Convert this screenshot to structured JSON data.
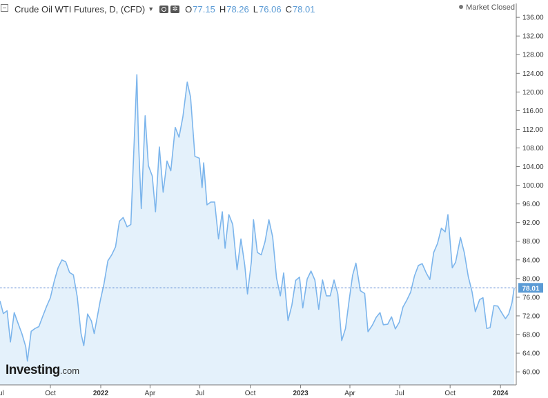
{
  "header": {
    "title": "Crude Oil WTI Futures, D, (CFD)",
    "ohlc": [
      {
        "label": "O",
        "value": "77.15"
      },
      {
        "label": "H",
        "value": "78.26"
      },
      {
        "label": "L",
        "value": "76.06"
      },
      {
        "label": "C",
        "value": "78.01"
      }
    ],
    "market_status": "Market Closed"
  },
  "logo": {
    "brand": "Investing",
    "suffix": ".com"
  },
  "colors": {
    "line": "#7cb5ec",
    "area": "#e4f1fb",
    "axis_label_bg": "#5b9bd5",
    "ohlc_value": "#5b9bd5"
  },
  "chart_data": {
    "type": "area",
    "last_price": 78.01,
    "last_price_label": "78.01",
    "y_ticks": [
      "136.00",
      "132.00",
      "128.00",
      "124.00",
      "120.00",
      "116.00",
      "112.00",
      "108.00",
      "104.00",
      "100.00",
      "96.00",
      "92.00",
      "88.00",
      "84.00",
      "80.00",
      "76.00",
      "72.00",
      "68.00",
      "64.00",
      "60.00"
    ],
    "ylim": [
      57.5,
      137.5
    ],
    "x_ticks": [
      {
        "label": "Oct",
        "bold": false
      },
      {
        "label": "2022",
        "bold": true
      },
      {
        "label": "Apr",
        "bold": false
      },
      {
        "label": "Jul",
        "bold": false
      },
      {
        "label": "Oct",
        "bold": false
      },
      {
        "label": "2023",
        "bold": true
      },
      {
        "label": "Apr",
        "bold": false
      },
      {
        "label": "Jul",
        "bold": false
      },
      {
        "label": "Oct",
        "bold": false
      },
      {
        "label": "2024",
        "bold": true
      }
    ],
    "x_tick_dates": [
      "2021-10-01",
      "2022-01-01",
      "2022-04-01",
      "2022-07-01",
      "2022-10-01",
      "2023-01-01",
      "2023-04-01",
      "2023-07-01",
      "2023-10-01",
      "2024-01-01"
    ],
    "x_range": [
      "2021-07-01",
      "2024-01-26"
    ],
    "x_left_cutoff_label": "Jul",
    "series": [
      {
        "points": [
          [
            "2021-07-01",
            75.2
          ],
          [
            "2021-07-07",
            72.5
          ],
          [
            "2021-07-14",
            73.1
          ],
          [
            "2021-07-20",
            66.4
          ],
          [
            "2021-07-27",
            72.7
          ],
          [
            "2021-08-03",
            70.4
          ],
          [
            "2021-08-10",
            68.2
          ],
          [
            "2021-08-17",
            65.4
          ],
          [
            "2021-08-20",
            62.3
          ],
          [
            "2021-08-27",
            68.7
          ],
          [
            "2021-09-03",
            69.3
          ],
          [
            "2021-09-10",
            69.7
          ],
          [
            "2021-09-17",
            71.9
          ],
          [
            "2021-09-24",
            74.0
          ],
          [
            "2021-10-01",
            75.9
          ],
          [
            "2021-10-08",
            79.4
          ],
          [
            "2021-10-15",
            82.3
          ],
          [
            "2021-10-22",
            84.0
          ],
          [
            "2021-10-29",
            83.6
          ],
          [
            "2021-11-05",
            81.3
          ],
          [
            "2021-11-12",
            80.8
          ],
          [
            "2021-11-19",
            76.1
          ],
          [
            "2021-11-26",
            68.2
          ],
          [
            "2021-12-01",
            65.6
          ],
          [
            "2021-12-08",
            72.4
          ],
          [
            "2021-12-15",
            70.9
          ],
          [
            "2021-12-20",
            68.2
          ],
          [
            "2021-12-31",
            75.2
          ],
          [
            "2022-01-07",
            78.9
          ],
          [
            "2022-01-14",
            83.8
          ],
          [
            "2022-01-21",
            85.1
          ],
          [
            "2022-01-28",
            86.8
          ],
          [
            "2022-02-04",
            92.3
          ],
          [
            "2022-02-11",
            93.1
          ],
          [
            "2022-02-18",
            91.1
          ],
          [
            "2022-02-25",
            91.6
          ],
          [
            "2022-03-01",
            103.4
          ],
          [
            "2022-03-08",
            123.7
          ],
          [
            "2022-03-11",
            109.3
          ],
          [
            "2022-03-16",
            95.0
          ],
          [
            "2022-03-23",
            114.9
          ],
          [
            "2022-03-29",
            104.2
          ],
          [
            "2022-04-05",
            102.0
          ],
          [
            "2022-04-11",
            94.3
          ],
          [
            "2022-04-18",
            108.2
          ],
          [
            "2022-04-25",
            98.5
          ],
          [
            "2022-05-02",
            105.2
          ],
          [
            "2022-05-09",
            103.1
          ],
          [
            "2022-05-17",
            112.4
          ],
          [
            "2022-05-24",
            110.3
          ],
          [
            "2022-05-31",
            114.7
          ],
          [
            "2022-06-08",
            122.1
          ],
          [
            "2022-06-14",
            118.9
          ],
          [
            "2022-06-22",
            106.2
          ],
          [
            "2022-06-30",
            105.8
          ],
          [
            "2022-07-05",
            99.5
          ],
          [
            "2022-07-08",
            104.8
          ],
          [
            "2022-07-14",
            95.8
          ],
          [
            "2022-07-21",
            96.4
          ],
          [
            "2022-07-28",
            96.4
          ],
          [
            "2022-08-04",
            88.5
          ],
          [
            "2022-08-11",
            94.3
          ],
          [
            "2022-08-16",
            86.5
          ],
          [
            "2022-08-23",
            93.7
          ],
          [
            "2022-08-30",
            91.6
          ],
          [
            "2022-09-07",
            81.9
          ],
          [
            "2022-09-14",
            88.5
          ],
          [
            "2022-09-21",
            82.9
          ],
          [
            "2022-09-26",
            76.7
          ],
          [
            "2022-10-03",
            83.6
          ],
          [
            "2022-10-07",
            92.6
          ],
          [
            "2022-10-14",
            85.6
          ],
          [
            "2022-10-21",
            85.1
          ],
          [
            "2022-10-28",
            87.9
          ],
          [
            "2022-11-04",
            92.6
          ],
          [
            "2022-11-11",
            88.9
          ],
          [
            "2022-11-18",
            80.1
          ],
          [
            "2022-11-25",
            76.3
          ],
          [
            "2022-12-01",
            81.2
          ],
          [
            "2022-12-09",
            71.0
          ],
          [
            "2022-12-16",
            74.3
          ],
          [
            "2022-12-23",
            79.6
          ],
          [
            "2022-12-30",
            80.3
          ],
          [
            "2023-01-05",
            73.7
          ],
          [
            "2023-01-13",
            79.9
          ],
          [
            "2023-01-20",
            81.6
          ],
          [
            "2023-01-27",
            79.7
          ],
          [
            "2023-02-03",
            73.4
          ],
          [
            "2023-02-10",
            79.7
          ],
          [
            "2023-02-17",
            76.3
          ],
          [
            "2023-02-24",
            76.3
          ],
          [
            "2023-03-03",
            79.7
          ],
          [
            "2023-03-10",
            76.7
          ],
          [
            "2023-03-17",
            66.7
          ],
          [
            "2023-03-24",
            69.3
          ],
          [
            "2023-03-31",
            75.7
          ],
          [
            "2023-04-06",
            80.7
          ],
          [
            "2023-04-12",
            83.3
          ],
          [
            "2023-04-20",
            77.4
          ],
          [
            "2023-04-28",
            76.8
          ],
          [
            "2023-05-04",
            68.6
          ],
          [
            "2023-05-12",
            70.0
          ],
          [
            "2023-05-19",
            71.7
          ],
          [
            "2023-05-26",
            72.7
          ],
          [
            "2023-06-01",
            70.1
          ],
          [
            "2023-06-09",
            70.2
          ],
          [
            "2023-06-16",
            71.8
          ],
          [
            "2023-06-23",
            69.2
          ],
          [
            "2023-06-30",
            70.6
          ],
          [
            "2023-07-07",
            73.9
          ],
          [
            "2023-07-14",
            75.4
          ],
          [
            "2023-07-21",
            77.1
          ],
          [
            "2023-07-28",
            80.6
          ],
          [
            "2023-08-04",
            82.8
          ],
          [
            "2023-08-11",
            83.2
          ],
          [
            "2023-08-18",
            81.3
          ],
          [
            "2023-08-25",
            79.8
          ],
          [
            "2023-09-01",
            85.6
          ],
          [
            "2023-09-08",
            87.5
          ],
          [
            "2023-09-15",
            90.8
          ],
          [
            "2023-09-22",
            90.0
          ],
          [
            "2023-09-27",
            93.7
          ],
          [
            "2023-10-05",
            82.3
          ],
          [
            "2023-10-11",
            83.5
          ],
          [
            "2023-10-20",
            88.8
          ],
          [
            "2023-10-27",
            85.5
          ],
          [
            "2023-11-03",
            80.5
          ],
          [
            "2023-11-10",
            77.2
          ],
          [
            "2023-11-16",
            72.9
          ],
          [
            "2023-11-24",
            75.5
          ],
          [
            "2023-11-30",
            75.9
          ],
          [
            "2023-12-07",
            69.3
          ],
          [
            "2023-12-13",
            69.5
          ],
          [
            "2023-12-20",
            74.2
          ],
          [
            "2023-12-27",
            74.1
          ],
          [
            "2024-01-03",
            72.7
          ],
          [
            "2024-01-10",
            71.4
          ],
          [
            "2024-01-16",
            72.4
          ],
          [
            "2024-01-22",
            74.8
          ],
          [
            "2024-01-26",
            78.0
          ]
        ]
      }
    ]
  }
}
